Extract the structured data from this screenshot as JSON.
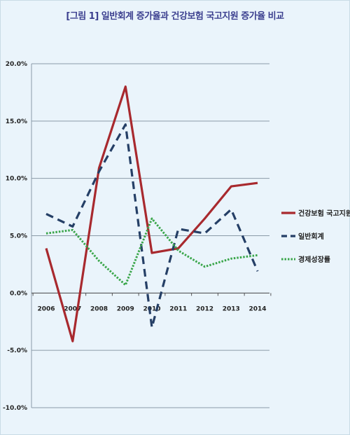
{
  "chart_data": {
    "type": "line",
    "title": "[그림 1] 일반회계 증가율과 건강보험 국고지원 증가율 비교",
    "xlabel": "",
    "ylabel": "",
    "categories": [
      "2006",
      "2007",
      "2008",
      "2009",
      "2010",
      "2011",
      "2012",
      "2013",
      "2014"
    ],
    "ylim": [
      -10,
      20
    ],
    "yticks": [
      -10,
      -5,
      0,
      5,
      10,
      15,
      20
    ],
    "ytick_labels": [
      "-10.0%",
      "-5.0%",
      "0.0%",
      "5.0%",
      "10.0%",
      "15.0%",
      "20.0%"
    ],
    "grid": true,
    "legend_position": "right",
    "series": [
      {
        "name": "건강보험 국고지원",
        "color": "#a8292e",
        "style": "solid",
        "values": [
          3.9,
          -4.2,
          10.9,
          18.0,
          3.5,
          3.9,
          6.5,
          9.3,
          9.6
        ]
      },
      {
        "name": "일반회계",
        "color": "#253f66",
        "style": "dashed",
        "values": [
          6.9,
          5.8,
          10.6,
          14.7,
          -3.0,
          5.6,
          5.2,
          7.3,
          1.9
        ]
      },
      {
        "name": "경제성장률",
        "color": "#3aa64a",
        "style": "dotted",
        "values": [
          5.2,
          5.5,
          2.8,
          0.7,
          6.5,
          3.7,
          2.3,
          3.0,
          3.3
        ]
      }
    ]
  }
}
